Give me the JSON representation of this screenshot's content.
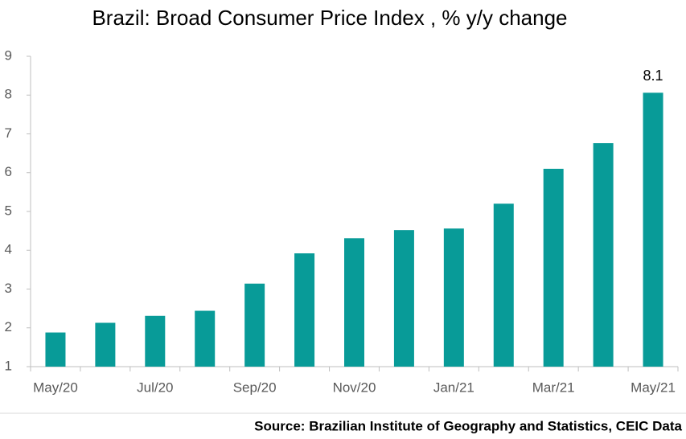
{
  "chart_data": {
    "type": "bar",
    "title": "Brazil: Broad Consumer Price Index , % y/y change",
    "source": "Source: Brazilian Institute of Geography and Statistics, CEIC Data",
    "categories": [
      "May/20",
      null,
      "Jul/20",
      null,
      "Sep/20",
      null,
      "Nov/20",
      null,
      "Jan/21",
      null,
      "Mar/21",
      null,
      "May/21"
    ],
    "values": [
      1.88,
      2.13,
      2.31,
      2.44,
      3.14,
      3.92,
      4.31,
      4.52,
      4.56,
      5.2,
      6.1,
      6.76,
      8.06
    ],
    "value_labels": [
      null,
      null,
      null,
      null,
      null,
      null,
      null,
      null,
      null,
      null,
      null,
      null,
      "8.1"
    ],
    "color": "#089b98",
    "ylim": [
      1,
      9
    ],
    "yticks": [
      1,
      2,
      3,
      4,
      5,
      6,
      7,
      8,
      9
    ]
  }
}
